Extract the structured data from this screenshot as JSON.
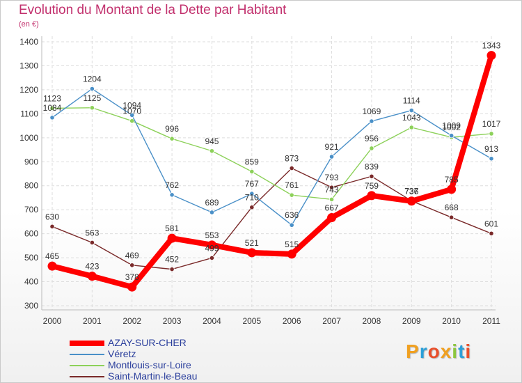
{
  "header": {
    "title": "Evolution du Montant de la Dette par Habitant",
    "subtitle": "(en €)"
  },
  "brand": {
    "letters": [
      "P",
      "r",
      "o",
      "x",
      "i",
      "t",
      "i"
    ],
    "colors": [
      "#f0a020",
      "#2c9fd8",
      "#e94f2b",
      "#f0a020",
      "#8cc63f",
      "#2c9fd8",
      "#e94f2b"
    ]
  },
  "chart_data": {
    "type": "line",
    "title": "Evolution du Montant de la Dette par Habitant",
    "subtitle": "(en €)",
    "x": [
      "2000",
      "2001",
      "2002",
      "2003",
      "2004",
      "2005",
      "2006",
      "2007",
      "2008",
      "2009",
      "2010",
      "2011"
    ],
    "ylim": [
      300,
      1400
    ],
    "yticks": [
      300,
      400,
      500,
      600,
      700,
      800,
      900,
      1000,
      1100,
      1200,
      1300,
      1400
    ],
    "grid": true,
    "legend_position": "bottom-left",
    "series": [
      {
        "name": "AZAY-SUR-CHER",
        "color": "#ff0000",
        "values": [
          465,
          423,
          378,
          581,
          553,
          521,
          515,
          667,
          759,
          736,
          785,
          1343
        ]
      },
      {
        "name": "Véretz",
        "color": "#4a90c8",
        "values": [
          1084,
          1204,
          1094,
          762,
          689,
          767,
          636,
          921,
          1069,
          1114,
          1009,
          913
        ]
      },
      {
        "name": "Montlouis-sur-Loire",
        "color": "#8dd15a",
        "values": [
          1123,
          1125,
          1070,
          996,
          945,
          859,
          761,
          743,
          956,
          1043,
          1002,
          1017
        ]
      },
      {
        "name": "Saint-Martin-le-Beau",
        "color": "#7a2a2a",
        "values": [
          630,
          563,
          469,
          452,
          499,
          710,
          873,
          793,
          839,
          737,
          668,
          601
        ]
      }
    ]
  }
}
